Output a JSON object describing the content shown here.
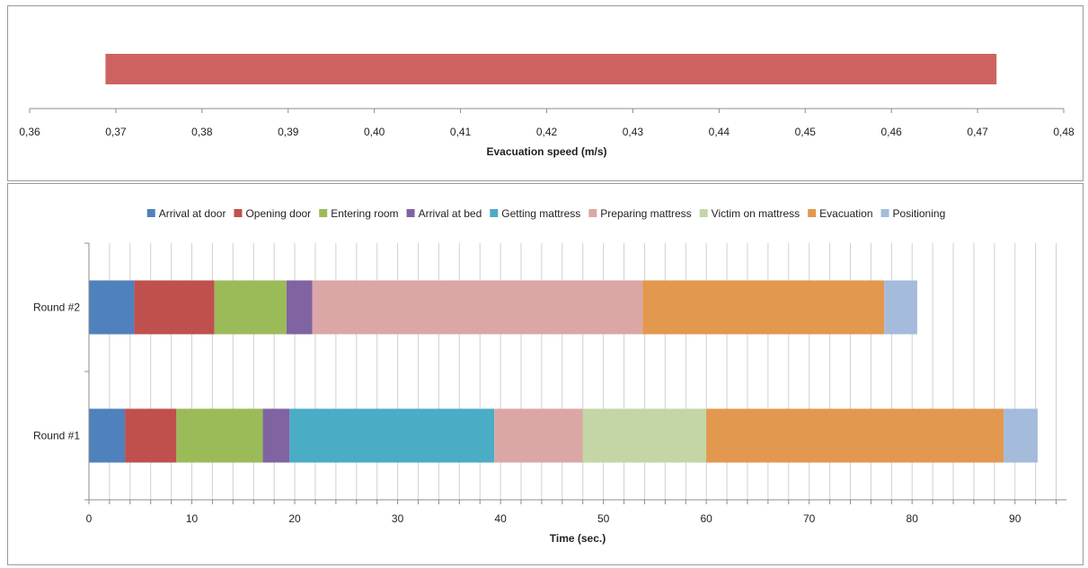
{
  "chart_data": [
    {
      "type": "bar",
      "orientation": "horizontal",
      "title": "",
      "xlabel": "Evacuation speed (m/s)",
      "ylabel": "",
      "xlim": [
        0.36,
        0.48
      ],
      "x_tick_labels": [
        "0,36",
        "0,37",
        "0,38",
        "0,39",
        "0,40",
        "0,41",
        "0,42",
        "0,43",
        "0,44",
        "0,45",
        "0,46",
        "0,47",
        "0,48"
      ],
      "range_bar": {
        "start": 0.3688,
        "end": 0.4722,
        "color": "#cd6360"
      },
      "grid": false,
      "legend": "none"
    },
    {
      "type": "bar",
      "orientation": "horizontal",
      "stacked": true,
      "title": "",
      "xlabel": "Time (sec.)",
      "ylabel": "",
      "xlim": [
        0,
        95
      ],
      "x_tick_labels": [
        "0",
        "10",
        "20",
        "30",
        "40",
        "50",
        "60",
        "70",
        "80",
        "90"
      ],
      "categories": [
        "Round #2",
        "Round #1"
      ],
      "grid": true,
      "legend_placement": "top",
      "series": [
        {
          "name": "Arrival at door",
          "color": "#4f81bd",
          "values": [
            4.4,
            3.5
          ]
        },
        {
          "name": "Opening door",
          "color": "#c0504d",
          "values": [
            7.8,
            5.0
          ]
        },
        {
          "name": "Entering room",
          "color": "#9bbb59",
          "values": [
            7.0,
            8.4
          ]
        },
        {
          "name": "Arrival at bed",
          "color": "#8064a2",
          "values": [
            2.5,
            2.6
          ]
        },
        {
          "name": "Getting mattress",
          "color": "#4bacc6",
          "values": [
            0,
            19.9
          ]
        },
        {
          "name": "Preparing mattress",
          "color": "#dba7a6",
          "values": [
            32.1,
            8.6
          ]
        },
        {
          "name": "Victim on mattress",
          "color": "#c4d6a5",
          "values": [
            0,
            12.0
          ]
        },
        {
          "name": "Evacuation",
          "color": "#e3984f",
          "values": [
            23.5,
            28.9
          ]
        },
        {
          "name": "Positioning",
          "color": "#a5bbdb",
          "values": [
            3.2,
            3.3
          ]
        }
      ]
    }
  ]
}
